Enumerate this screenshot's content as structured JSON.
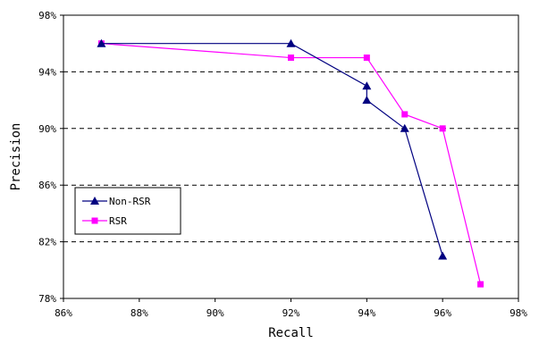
{
  "chart_data": {
    "type": "line",
    "xlabel": "Recall",
    "ylabel": "Precision",
    "xlim": [
      86,
      98
    ],
    "ylim": [
      78,
      98
    ],
    "x_ticks": [
      "86%",
      "88%",
      "90%",
      "92%",
      "94%",
      "96%",
      "98%"
    ],
    "y_ticks": [
      "78%",
      "82%",
      "86%",
      "90%",
      "94%",
      "98%"
    ],
    "grid": "dashed horizontal lines at 82%, 86%, 90%, 94%",
    "legend_placement": "left-middle",
    "series": [
      {
        "name": "Non-RSR",
        "color": "#000080",
        "marker": "triangle",
        "points": [
          {
            "x": 87,
            "y": 96
          },
          {
            "x": 92,
            "y": 96
          },
          {
            "x": 94,
            "y": 93
          },
          {
            "x": 94,
            "y": 92
          },
          {
            "x": 95,
            "y": 90
          },
          {
            "x": 96,
            "y": 81
          }
        ]
      },
      {
        "name": "RSR",
        "color": "#ff00ff",
        "marker": "square",
        "points": [
          {
            "x": 87,
            "y": 96
          },
          {
            "x": 92,
            "y": 95
          },
          {
            "x": 94,
            "y": 95
          },
          {
            "x": 95,
            "y": 91
          },
          {
            "x": 96,
            "y": 90
          },
          {
            "x": 97,
            "y": 79
          }
        ]
      }
    ]
  }
}
